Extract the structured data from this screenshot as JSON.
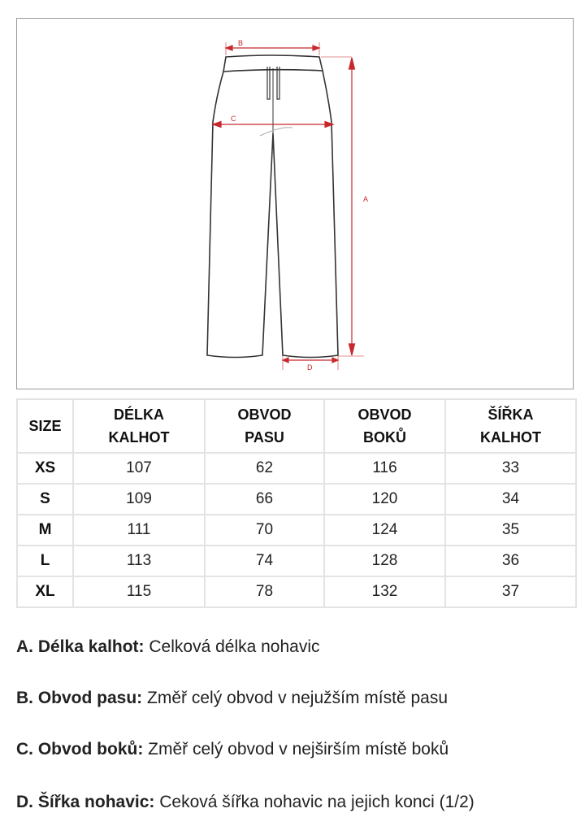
{
  "diagram": {
    "labels": {
      "a": "A",
      "b": "B",
      "c": "C",
      "d": "D"
    },
    "accent_color": "#c8282d"
  },
  "table": {
    "headers": [
      "SIZE",
      "DÉLKA KALHOT",
      "OBVOD PASU",
      "OBVOD BOKŮ",
      "ŠÍŘKA KALHOT"
    ],
    "rows": [
      [
        "XS",
        "107",
        "62",
        "116",
        "33"
      ],
      [
        "S",
        "109",
        "66",
        "120",
        "34"
      ],
      [
        "M",
        "111",
        "70",
        "124",
        "35"
      ],
      [
        "L",
        "113",
        "74",
        "128",
        "36"
      ],
      [
        "XL",
        "115",
        "78",
        "132",
        "37"
      ]
    ]
  },
  "notes": [
    {
      "term": "A. Délka kalhot:",
      "text": "Celková délka nohavic"
    },
    {
      "term": "B. Obvod pasu:",
      "text": "Změř celý obvod v nejužším místě pasu"
    },
    {
      "term": "C. Obvod boků:",
      "text": "Změř celý obvod v nejširším místě boků"
    },
    {
      "term": "D. Šířka nohavic:",
      "text": "Ceková šířka nohavic na jejich konci (1/2)"
    }
  ]
}
